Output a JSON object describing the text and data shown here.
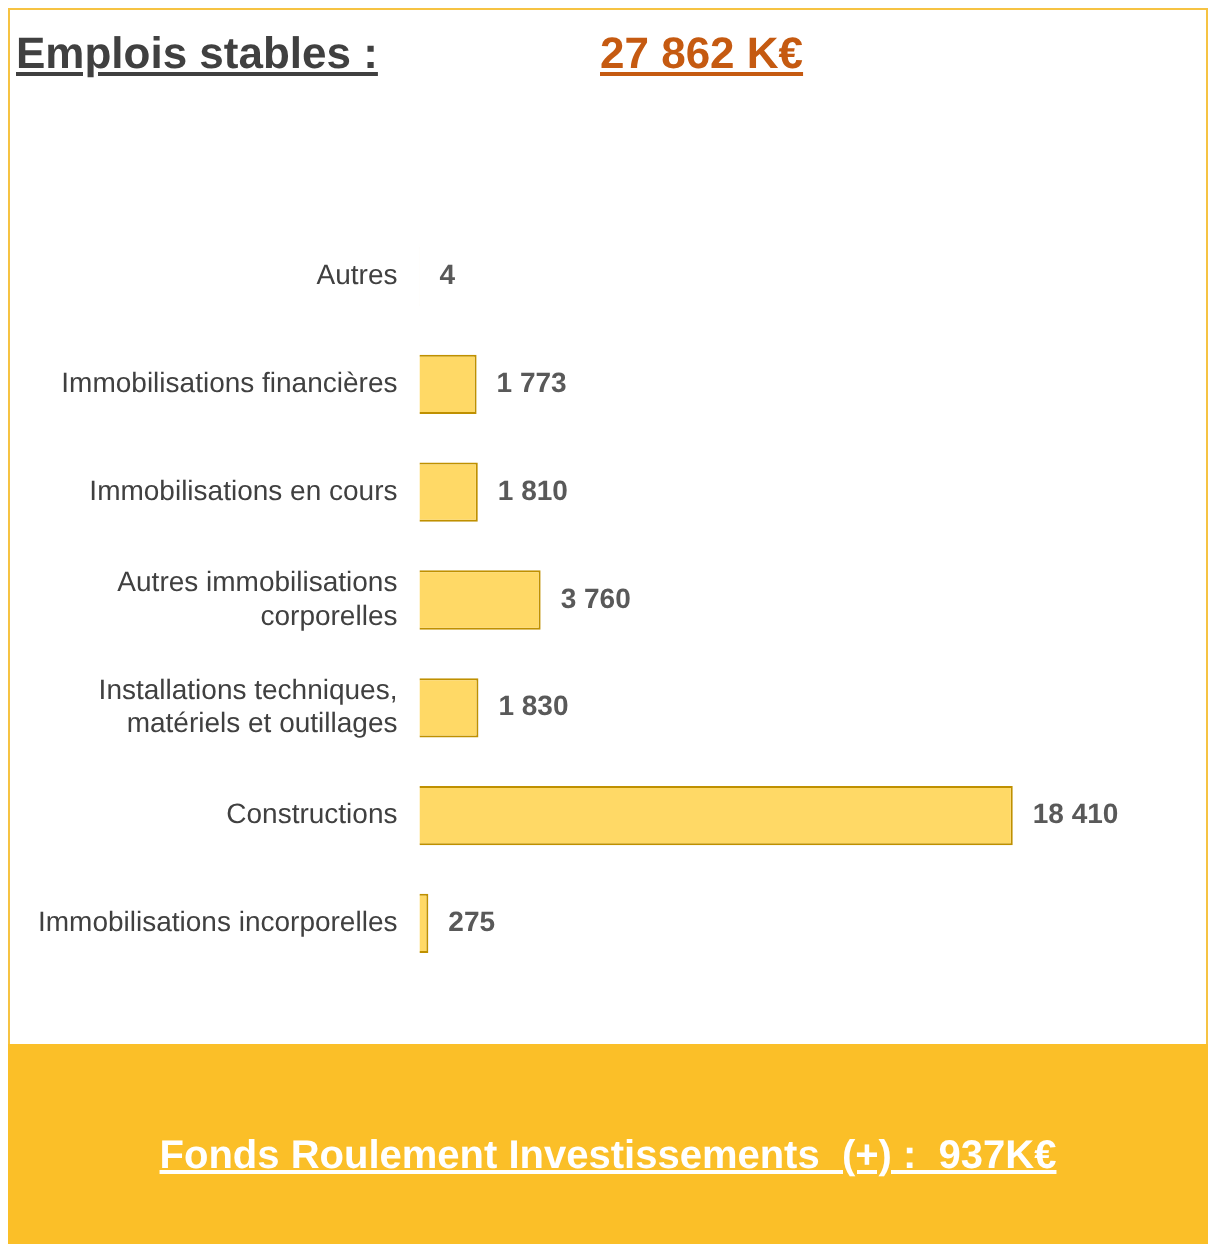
{
  "chart_data": {
    "type": "bar",
    "orientation": "horizontal",
    "title": "Emplois stables :",
    "annotations": [
      "27 862 K€",
      "Fonds Roulement Investissements  (+) :  937K€"
    ],
    "categories": [
      "Autres",
      "Immobilisations financières",
      "Immobilisations en cours",
      "Autres immobilisations corporelles",
      "Installations techniques, matériels et outillages",
      "Constructions",
      "Immobilisations incorporelles"
    ],
    "values": [
      4,
      1773,
      1810,
      3760,
      1830,
      18410,
      275
    ],
    "value_labels": [
      "4",
      "1 773",
      "1 810",
      "3 760",
      "1 830",
      "18 410",
      "275"
    ],
    "color": "#ffd966",
    "tick_labels": "y",
    "grid": false,
    "legend": false
  }
}
